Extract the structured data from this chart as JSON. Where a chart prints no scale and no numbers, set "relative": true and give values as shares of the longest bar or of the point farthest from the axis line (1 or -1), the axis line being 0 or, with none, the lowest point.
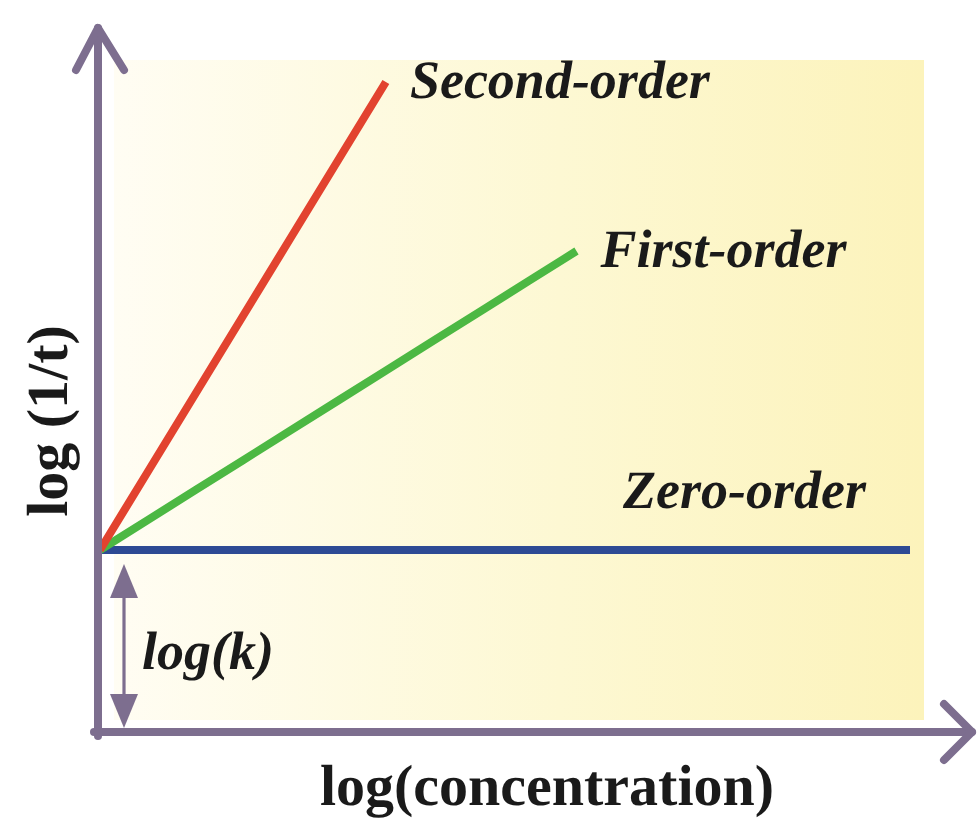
{
  "chart_data": {
    "type": "line",
    "relative": true,
    "xlabel": "log(concentration)",
    "ylabel": "log (1/t)",
    "categories": [
      null,
      null,
      null,
      null,
      null,
      null,
      null,
      null,
      null,
      null,
      null,
      null,
      null,
      null,
      null,
      null,
      null,
      null
    ],
    "series": [
      {
        "name": "Zero-order",
        "color": "#2d4a94",
        "values": [
          0.28,
          0.28,
          0.28,
          0.28,
          0.28,
          0.28,
          0.28,
          0.28,
          0.28,
          0.28,
          0.28,
          0.28,
          0.28,
          0.28,
          0.28,
          0.28,
          0.28,
          0.28
        ]
      },
      {
        "name": "First-order",
        "color": "#4cb843",
        "values": [
          0.28,
          0.326,
          0.372,
          0.418,
          0.464,
          0.51,
          0.556,
          0.602,
          0.648,
          0.694,
          0.74,
          null,
          null,
          null,
          null,
          null,
          null,
          null
        ]
      },
      {
        "name": "Second-order",
        "color": "#e2432f",
        "values": [
          0.28,
          0.4,
          0.52,
          0.64,
          0.76,
          0.88,
          1,
          null,
          null,
          null,
          null,
          null,
          null,
          null,
          null,
          null,
          null,
          null
        ]
      }
    ],
    "annotations": [
      "log(k)"
    ]
  }
}
